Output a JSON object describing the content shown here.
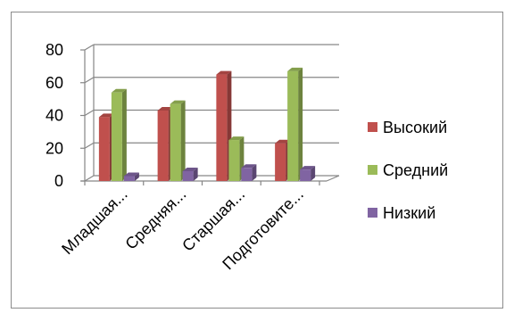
{
  "chart_data": {
    "type": "bar",
    "categories": [
      "Младшая...",
      "Средняя...",
      "Старшая...",
      "Подготовите..."
    ],
    "series": [
      {
        "name": "Высокий",
        "values": [
          39,
          43,
          65,
          23
        ],
        "color": "#c0504d"
      },
      {
        "name": "Средний",
        "values": [
          54,
          47,
          25,
          67
        ],
        "color": "#9bbb59"
      },
      {
        "name": "Низкий",
        "values": [
          3,
          6,
          8,
          7
        ],
        "color": "#8064a2"
      }
    ],
    "title": "",
    "xlabel": "",
    "ylabel": "",
    "ylim": [
      0,
      80
    ],
    "yticks": [
      0,
      20,
      40,
      60,
      80
    ],
    "grid": true,
    "legend_position": "right",
    "style": "3d-clustered-column"
  }
}
